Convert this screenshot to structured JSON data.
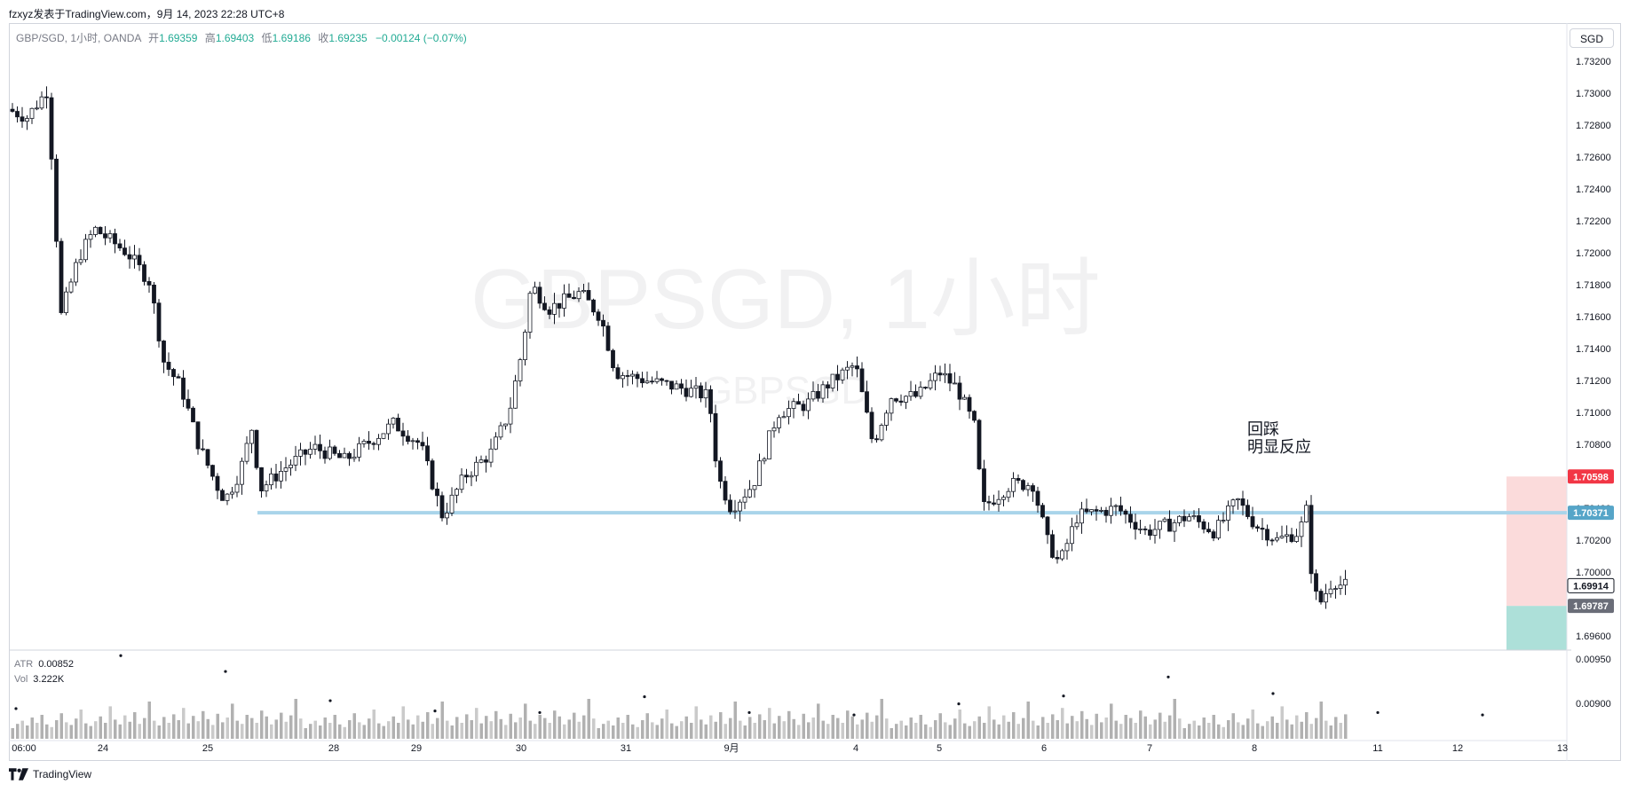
{
  "header": {
    "published_line": "fzxyz发表于TradingView.com，9月 14, 2023 22:28 UTC+8"
  },
  "legend": {
    "symbol": "GBP/SGD, 1小时, OANDA",
    "open_label": "开",
    "open": "1.69359",
    "high_label": "高",
    "high": "1.69403",
    "low_label": "低",
    "low": "1.69186",
    "close_label": "收",
    "close": "1.69235",
    "change": "−0.00124 (−0.07%)"
  },
  "currency_button": "SGD",
  "indicators": {
    "atr_name": "ATR",
    "atr_value": "0.00852",
    "vol_name": "Vol",
    "vol_value": "3.222K"
  },
  "footer": {
    "brand": "TradingView"
  },
  "colors": {
    "level_line": "#a9d4ea",
    "stop_zone": "#f9cfcf",
    "target_zone": "#9fdbd2",
    "price_red": "#f23645",
    "price_teal": "#56a5c8",
    "price_gray": "#6a6d78"
  },
  "chart_data": {
    "type": "candlestick",
    "watermark": "GBPSGD, 1小时",
    "watermark_sub": "GBPSGD",
    "annotation": [
      "回踩",
      "明显反应"
    ],
    "x_tick_labels": [
      "06:00",
      "24",
      "25",
      "28",
      "29",
      "30",
      "31",
      "9月",
      "4",
      "5",
      "6",
      "7",
      "8",
      "11",
      "12",
      "13"
    ],
    "y_tick_labels": [
      "1.73200",
      "1.73000",
      "1.72800",
      "1.72600",
      "1.72400",
      "1.72200",
      "1.72000",
      "1.71800",
      "1.71600",
      "1.71400",
      "1.71200",
      "1.71000",
      "1.70800",
      "1.70600",
      "1.70400",
      "1.70200",
      "1.70000",
      "1.69800",
      "1.69600"
    ],
    "ylim": [
      1.6951,
      1.7344
    ],
    "horizontal_level": 1.70371,
    "price_labels": {
      "stop": "1.70598",
      "level": "1.70371",
      "current": "1.69914",
      "entry": "1.69787"
    },
    "position": {
      "entry": 1.69787,
      "stop": 1.70598,
      "target_bottom": 1.6951
    },
    "indicator_axis_labels": [
      "0.00950",
      "0.00900"
    ],
    "price_path": [
      {
        "t": 0,
        "p": 1.729
      },
      {
        "t": 22,
        "p": 1.7285
      },
      {
        "t": 45,
        "p": 1.7302
      },
      {
        "t": 52,
        "p": 1.724
      },
      {
        "t": 60,
        "p": 1.716
      },
      {
        "t": 80,
        "p": 1.7197
      },
      {
        "t": 98,
        "p": 1.7215
      },
      {
        "t": 135,
        "p": 1.72
      },
      {
        "t": 160,
        "p": 1.7182
      },
      {
        "t": 176,
        "p": 1.7132
      },
      {
        "t": 196,
        "p": 1.7115
      },
      {
        "t": 215,
        "p": 1.708
      },
      {
        "t": 235,
        "p": 1.7055
      },
      {
        "t": 245,
        "p": 1.7045
      },
      {
        "t": 262,
        "p": 1.7063
      },
      {
        "t": 275,
        "p": 1.709
      },
      {
        "t": 285,
        "p": 1.7052
      },
      {
        "t": 312,
        "p": 1.7065
      },
      {
        "t": 345,
        "p": 1.7078
      },
      {
        "t": 380,
        "p": 1.707
      },
      {
        "t": 435,
        "p": 1.7093
      },
      {
        "t": 465,
        "p": 1.708
      },
      {
        "t": 490,
        "p": 1.7035
      },
      {
        "t": 515,
        "p": 1.706
      },
      {
        "t": 545,
        "p": 1.7075
      },
      {
        "t": 565,
        "p": 1.71
      },
      {
        "t": 580,
        "p": 1.714
      },
      {
        "t": 590,
        "p": 1.718
      },
      {
        "t": 610,
        "p": 1.7165
      },
      {
        "t": 645,
        "p": 1.7175
      },
      {
        "t": 668,
        "p": 1.716
      },
      {
        "t": 685,
        "p": 1.7125
      },
      {
        "t": 720,
        "p": 1.712
      },
      {
        "t": 760,
        "p": 1.7115
      },
      {
        "t": 790,
        "p": 1.711
      },
      {
        "t": 800,
        "p": 1.706
      },
      {
        "t": 815,
        "p": 1.704
      },
      {
        "t": 840,
        "p": 1.7055
      },
      {
        "t": 868,
        "p": 1.71
      },
      {
        "t": 900,
        "p": 1.7105
      },
      {
        "t": 925,
        "p": 1.7118
      },
      {
        "t": 955,
        "p": 1.713
      },
      {
        "t": 975,
        "p": 1.708
      },
      {
        "t": 995,
        "p": 1.711
      },
      {
        "t": 1025,
        "p": 1.711
      },
      {
        "t": 1050,
        "p": 1.7125
      },
      {
        "t": 1070,
        "p": 1.7115
      },
      {
        "t": 1090,
        "p": 1.709
      },
      {
        "t": 1098,
        "p": 1.704
      },
      {
        "t": 1130,
        "p": 1.7055
      },
      {
        "t": 1155,
        "p": 1.7055
      },
      {
        "t": 1172,
        "p": 1.7018
      },
      {
        "t": 1185,
        "p": 1.7005
      },
      {
        "t": 1205,
        "p": 1.7035
      },
      {
        "t": 1250,
        "p": 1.704
      },
      {
        "t": 1282,
        "p": 1.7025
      },
      {
        "t": 1310,
        "p": 1.703
      },
      {
        "t": 1330,
        "p": 1.7035
      },
      {
        "t": 1360,
        "p": 1.7025
      },
      {
        "t": 1385,
        "p": 1.7045
      },
      {
        "t": 1405,
        "p": 1.703
      },
      {
        "t": 1430,
        "p": 1.702
      },
      {
        "t": 1455,
        "p": 1.7025
      },
      {
        "t": 1464,
        "p": 1.704
      },
      {
        "t": 1470,
        "p": 1.699
      },
      {
        "t": 1478,
        "p": 1.698
      },
      {
        "t": 1493,
        "p": 1.6995
      },
      {
        "t": 1503,
        "p": 1.69914
      }
    ],
    "volume_pattern": [
      20,
      28,
      34,
      25,
      40,
      30,
      45,
      27,
      22,
      35,
      48,
      31,
      26,
      38,
      55,
      29,
      24,
      33,
      42,
      30,
      61,
      36,
      27,
      44,
      32,
      50,
      28,
      39,
      70,
      34,
      25,
      41,
      30,
      46,
      35,
      58,
      29,
      43,
      33,
      52,
      37,
      26,
      47,
      31,
      40,
      66,
      34,
      28,
      45,
      39,
      30,
      53,
      42,
      27,
      36,
      49,
      32,
      44,
      75,
      38
    ]
  }
}
